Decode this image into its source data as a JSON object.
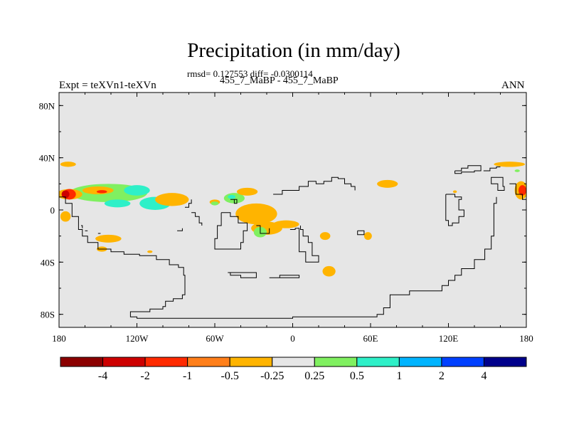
{
  "chart_data": {
    "type": "map",
    "title": "Precipitation (in mm/day)",
    "stats": "rmsd= 0.127553 diff= -0.0300114",
    "subtitle": "455_7_MaBP - 455_7_MaBP",
    "left_label": "Expt = teXVn1-teXVn",
    "right_label": "ANN",
    "x_ticks": [
      {
        "lon": -180,
        "label": "180"
      },
      {
        "lon": -120,
        "label": "120W"
      },
      {
        "lon": -60,
        "label": "60W"
      },
      {
        "lon": 0,
        "label": "0"
      },
      {
        "lon": 60,
        "label": "60E"
      },
      {
        "lon": 120,
        "label": "120E"
      },
      {
        "lon": 180,
        "label": "180"
      }
    ],
    "y_ticks": [
      {
        "lat": 80,
        "label": "80N"
      },
      {
        "lat": 40,
        "label": "40N"
      },
      {
        "lat": 0,
        "label": "0"
      },
      {
        "lat": -40,
        "label": "40S"
      },
      {
        "lat": -80,
        "label": "80S"
      }
    ],
    "xlim": [
      -180,
      180
    ],
    "ylim": [
      -90,
      90
    ],
    "colorbar": {
      "colors": [
        "#8b0000",
        "#cd0000",
        "#ff2a00",
        "#ff7f1a",
        "#ffb400",
        "#e6e6e6",
        "#80f060",
        "#2ef0c8",
        "#00b4ff",
        "#0040ff",
        "#00008b"
      ],
      "labels": [
        "-4",
        "-2",
        "-1",
        "-0.5",
        "-0.25",
        "0.25",
        "0.5",
        "1",
        "2",
        "4"
      ]
    },
    "anomalies": [
      {
        "lon": -142,
        "lat": 13,
        "rlon": 30,
        "rlat": 7,
        "color": "#80f060"
      },
      {
        "lon": -135,
        "lat": 5,
        "rlon": 10,
        "rlat": 3,
        "color": "#2ef0c8"
      },
      {
        "lon": -106,
        "lat": 5,
        "rlon": 12,
        "rlat": 5,
        "color": "#2ef0c8"
      },
      {
        "lon": -120,
        "lat": 15,
        "rlon": 10,
        "rlat": 4,
        "color": "#2ef0c8"
      },
      {
        "lon": -172,
        "lat": 12,
        "rlon": 10,
        "rlat": 4,
        "color": "#ffb400"
      },
      {
        "lon": -150,
        "lat": 15,
        "rlon": 12,
        "rlat": 3,
        "color": "#ffb400"
      },
      {
        "lon": -172,
        "lat": 12,
        "rlon": 5,
        "rlat": 4,
        "color": "#ff2a00"
      },
      {
        "lon": -175,
        "lat": 12,
        "rlon": 3,
        "rlat": 3,
        "color": "#cd0000"
      },
      {
        "lon": -147,
        "lat": 14,
        "rlon": 4,
        "rlat": 1.2,
        "color": "#ff2a00"
      },
      {
        "lon": -173,
        "lat": 35,
        "rlon": 6,
        "rlat": 2,
        "color": "#ffb400"
      },
      {
        "lon": -175,
        "lat": -5,
        "rlon": 4,
        "rlat": 4,
        "color": "#ffb400"
      },
      {
        "lon": -142,
        "lat": -22,
        "rlon": 10,
        "rlat": 3,
        "color": "#ffb400"
      },
      {
        "lon": -147,
        "lat": -30,
        "rlon": 4,
        "rlat": 2,
        "color": "#ffb400"
      },
      {
        "lon": -110,
        "lat": -32,
        "rlon": 2,
        "rlat": 1,
        "color": "#ffb400"
      },
      {
        "lon": -93,
        "lat": 8,
        "rlon": 13,
        "rlat": 5,
        "color": "#ffb400"
      },
      {
        "lon": -60,
        "lat": 6,
        "rlon": 4,
        "rlat": 2,
        "color": "#ffb400"
      },
      {
        "lon": -60,
        "lat": 5,
        "rlon": 3,
        "rlat": 1.5,
        "color": "#80f060"
      },
      {
        "lon": -45,
        "lat": 9,
        "rlon": 8,
        "rlat": 4,
        "color": "#80f060"
      },
      {
        "lon": -47,
        "lat": 10,
        "rlon": 3,
        "rlat": 1.5,
        "color": "#2ef0c8"
      },
      {
        "lon": -35,
        "lat": 14,
        "rlon": 8,
        "rlat": 3,
        "color": "#ffb400"
      },
      {
        "lon": -28,
        "lat": -3,
        "rlon": 16,
        "rlat": 8,
        "color": "#ffb400"
      },
      {
        "lon": -20,
        "lat": -14,
        "rlon": 12,
        "rlat": 5,
        "color": "#ffb400"
      },
      {
        "lon": -25,
        "lat": -17,
        "rlon": 5,
        "rlat": 4,
        "color": "#80f060"
      },
      {
        "lon": -5,
        "lat": -11,
        "rlon": 10,
        "rlat": 3,
        "color": "#ffb400"
      },
      {
        "lon": 25,
        "lat": -20,
        "rlon": 4,
        "rlat": 3,
        "color": "#ffb400"
      },
      {
        "lon": 58,
        "lat": -20,
        "rlon": 3,
        "rlat": 3,
        "color": "#ffb400"
      },
      {
        "lon": 28,
        "lat": -47,
        "rlon": 5,
        "rlat": 4,
        "color": "#ffb400"
      },
      {
        "lon": 73,
        "lat": 20,
        "rlon": 8,
        "rlat": 3,
        "color": "#ffb400"
      },
      {
        "lon": 125,
        "lat": 14,
        "rlon": 1.5,
        "rlat": 1,
        "color": "#ffb400"
      },
      {
        "lon": 167,
        "lat": 35,
        "rlon": 12,
        "rlat": 2,
        "color": "#ffb400"
      },
      {
        "lon": 176,
        "lat": 15,
        "rlon": 5,
        "rlat": 7,
        "color": "#ffb400"
      },
      {
        "lon": 177,
        "lat": 15,
        "rlon": 3,
        "rlat": 4,
        "color": "#ff2a00"
      },
      {
        "lon": 173,
        "lat": 30,
        "rlon": 2,
        "rlat": 1,
        "color": "#80f060"
      }
    ],
    "coastlines": [
      [
        [
          -180,
          10
        ],
        [
          -175,
          5
        ],
        [
          -170,
          -5
        ],
        [
          -165,
          -15
        ],
        [
          -162,
          -20
        ],
        [
          -158,
          -25
        ],
        [
          -150,
          -30
        ],
        [
          -140,
          -32
        ],
        [
          -130,
          -34
        ],
        [
          -118,
          -35
        ],
        [
          -105,
          -38
        ],
        [
          -95,
          -42
        ],
        [
          -88,
          -44
        ],
        [
          -84,
          -50
        ],
        [
          -83,
          -58
        ],
        [
          -83,
          -65
        ],
        [
          -85,
          -68
        ],
        [
          -92,
          -70
        ],
        [
          -98,
          -74
        ],
        [
          -100,
          -76
        ],
        [
          -110,
          -78
        ],
        [
          -118,
          -78
        ],
        [
          -125,
          -80
        ],
        [
          -125,
          -82
        ],
        [
          -120,
          -83
        ],
        [
          -60,
          -83
        ],
        [
          -30,
          -83
        ],
        [
          0,
          -82
        ],
        [
          40,
          -82
        ],
        [
          65,
          -80
        ],
        [
          70,
          -75
        ],
        [
          75,
          -65
        ],
        [
          90,
          -62
        ],
        [
          110,
          -62
        ],
        [
          115,
          -58
        ],
        [
          120,
          -54
        ],
        [
          125,
          -50
        ],
        [
          130,
          -45
        ],
        [
          140,
          -38
        ],
        [
          148,
          -30
        ],
        [
          153,
          -20
        ],
        [
          155,
          -10
        ],
        [
          155,
          5
        ],
        [
          157,
          10
        ]
      ],
      [
        [
          -163,
          -12
        ],
        [
          -162,
          -14
        ]
      ],
      [
        [
          -160,
          -16
        ],
        [
          -158,
          -16
        ]
      ],
      [
        [
          -150,
          -18
        ],
        [
          -148,
          -18
        ]
      ],
      [
        [
          -89,
          -16
        ],
        [
          -85,
          -14
        ]
      ],
      [
        [
          -78,
          -2
        ],
        [
          -75,
          -5
        ],
        [
          -72,
          -10
        ],
        [
          -70,
          -12
        ]
      ],
      [
        [
          -83,
          2
        ],
        [
          -80,
          5
        ],
        [
          -78,
          8
        ]
      ],
      [
        [
          -55,
          -2
        ],
        [
          -55,
          -12
        ],
        [
          -58,
          -15
        ],
        [
          -58,
          -22
        ],
        [
          -60,
          -28
        ],
        [
          -60,
          -30
        ],
        [
          -48,
          -30
        ],
        [
          -40,
          -25
        ],
        [
          -38,
          -16
        ],
        [
          -35,
          -10
        ],
        [
          -42,
          -5
        ],
        [
          -48,
          -2
        ],
        [
          -55,
          -2
        ]
      ],
      [
        [
          -48,
          8
        ],
        [
          -45,
          5
        ],
        [
          -43,
          8
        ],
        [
          -48,
          8
        ]
      ],
      [
        [
          -28,
          -12
        ],
        [
          -25,
          -18
        ],
        [
          -20,
          -18
        ],
        [
          -18,
          -14
        ]
      ],
      [
        [
          -15,
          12
        ],
        [
          -8,
          15
        ],
        [
          5,
          18
        ],
        [
          12,
          22
        ],
        [
          18,
          20
        ],
        [
          24,
          22
        ],
        [
          30,
          25
        ],
        [
          35,
          24
        ],
        [
          40,
          20
        ],
        [
          45,
          18
        ],
        [
          48,
          15
        ]
      ],
      [
        [
          -2,
          -15
        ],
        [
          2,
          -14
        ],
        [
          5,
          -20
        ],
        [
          5,
          -32
        ],
        [
          10,
          -40
        ],
        [
          18,
          -40
        ],
        [
          20,
          -35
        ],
        [
          15,
          -25
        ],
        [
          12,
          -20
        ],
        [
          8,
          -15
        ],
        [
          6,
          -12
        ]
      ],
      [
        [
          -50,
          -48
        ],
        [
          -48,
          -50
        ],
        [
          -40,
          -52
        ],
        [
          -30,
          -52
        ],
        [
          -28,
          -48
        ],
        [
          -45,
          -48
        ],
        [
          -50,
          -48
        ]
      ],
      [
        [
          -18,
          -52
        ],
        [
          -10,
          -50
        ],
        [
          2,
          -50
        ],
        [
          5,
          -52
        ],
        [
          -15,
          -52
        ]
      ],
      [
        [
          50,
          -16
        ],
        [
          55,
          -16
        ],
        [
          55,
          -19
        ],
        [
          50,
          -19
        ],
        [
          50,
          -16
        ]
      ],
      [
        [
          125,
          30
        ],
        [
          130,
          32
        ],
        [
          135,
          34
        ],
        [
          145,
          34
        ],
        [
          145,
          30
        ],
        [
          140,
          29
        ],
        [
          135,
          29
        ],
        [
          130,
          28
        ],
        [
          125,
          30
        ]
      ],
      [
        [
          147,
          30
        ],
        [
          152,
          32
        ],
        [
          157,
          33
        ],
        [
          160,
          33
        ]
      ],
      [
        [
          155,
          25
        ],
        [
          153,
          20
        ],
        [
          158,
          15
        ],
        [
          163,
          18
        ],
        [
          162,
          25
        ],
        [
          155,
          25
        ]
      ],
      [
        [
          118,
          12
        ],
        [
          125,
          10
        ],
        [
          130,
          8
        ],
        [
          128,
          0
        ],
        [
          132,
          -5
        ],
        [
          128,
          -10
        ],
        [
          123,
          -12
        ],
        [
          120,
          -8
        ],
        [
          118,
          12
        ]
      ],
      [
        [
          167,
          20
        ],
        [
          172,
          12
        ],
        [
          177,
          8
        ],
        [
          180,
          6
        ]
      ]
    ]
  }
}
